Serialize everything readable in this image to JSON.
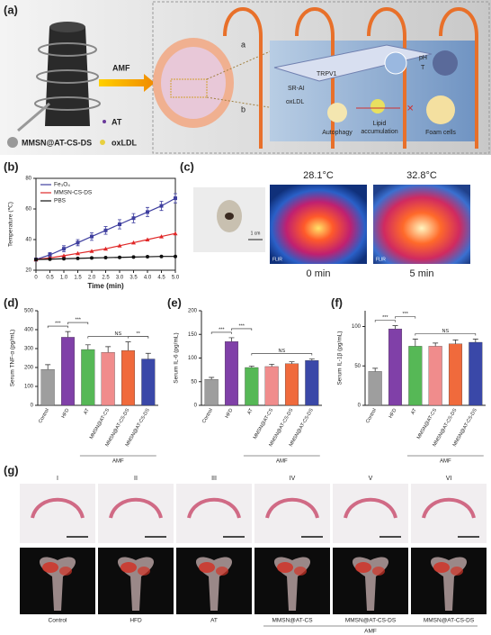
{
  "panel_labels": [
    "(a)",
    "(b)",
    "(c)",
    "(d)",
    "(e)",
    "(f)",
    "(g)"
  ],
  "panel_a": {
    "amf": "AMF",
    "nanoparticle": "MMSN@AT-CS-DS",
    "legend_at": "AT",
    "legend_oxldl": "oxLDL",
    "route_a": "a",
    "route_b": "b",
    "sr_ai": "SR-AI",
    "trpv1": "TRPV1",
    "oxldl": "oxLDL",
    "ph": "pH",
    "t": "T",
    "autophagy": "Autophagy",
    "lipid_lines": [
      "Lipid",
      "accumulation"
    ],
    "foam": "Foam cells"
  },
  "panel_c": {
    "temp_0": "28.1°C",
    "temp_5": "32.8°C",
    "time_0": "0 min",
    "time_5": "5 min",
    "scale": "1 cm",
    "brand": "FLIR"
  },
  "panel_g": {
    "sections": [
      "I",
      "II",
      "III",
      "IV",
      "V",
      "VI"
    ],
    "groups": [
      "Control",
      "HFD",
      "AT",
      "MMSN@AT-CS",
      "MMSN@AT-CS-DS",
      "MMSN@AT-CS-DS"
    ],
    "amf": "AMF"
  },
  "chart_data": [
    {
      "type": "line",
      "x_label": "Time (min)",
      "y_label": "Temperature (℃)",
      "x": [
        0,
        0.5,
        1,
        1.5,
        2,
        2.5,
        3,
        3.5,
        4,
        4.5,
        5
      ],
      "series": [
        {
          "name": "Fe₃O₄",
          "color": "#3f3f9f",
          "values": [
            27,
            30,
            34,
            38,
            42,
            46,
            50,
            54,
            58,
            62,
            67
          ],
          "errors": [
            1,
            1.5,
            2,
            2,
            2.5,
            2.5,
            3,
            3,
            3,
            3,
            3
          ]
        },
        {
          "name": "MMSN-CS-DS",
          "color": "#e02828",
          "values": [
            27,
            28,
            29.5,
            31,
            32.5,
            34,
            36,
            38,
            40,
            42,
            44
          ]
        },
        {
          "name": "PBS",
          "color": "#111111",
          "values": [
            27,
            27.2,
            27.5,
            27.7,
            28,
            28.2,
            28.4,
            28.6,
            28.8,
            29,
            29
          ]
        }
      ],
      "xlim": [
        0,
        5
      ],
      "xticks": [
        0,
        0.5,
        {
          "value": 1,
          "label": "1.0"
        },
        1.5,
        {
          "value": 2,
          "label": "2.0"
        },
        2.5,
        {
          "value": 3,
          "label": "3.0"
        },
        3.5,
        {
          "value": 4,
          "label": "4.0"
        },
        4.5,
        {
          "value": 5,
          "label": "5.0"
        }
      ],
      "ylim": [
        20,
        80
      ],
      "yticks": [
        20,
        40,
        60,
        80
      ],
      "legend": "upper-left"
    },
    {
      "type": "bar",
      "y_label": "Serum TNF-α (pg/mL)",
      "categories": [
        "Control",
        "HFD",
        "AT",
        "MMSN@AT-CS",
        "MMSN@AT-CS-DS",
        "MMSN@AT-CS-DS"
      ],
      "values": [
        190,
        360,
        295,
        280,
        290,
        245
      ],
      "errors": [
        25,
        30,
        25,
        30,
        45,
        30
      ],
      "colors": [
        "#9e9e9e",
        "#8040a8",
        "#56b856",
        "#f08c8c",
        "#f06a3c",
        "#3a48a8"
      ],
      "ylim": [
        0,
        500
      ],
      "yticks": [
        0,
        100,
        200,
        300,
        400,
        500
      ],
      "annotations": [
        "***",
        "***",
        "NS",
        "**"
      ],
      "group_label": "AMF"
    },
    {
      "type": "bar",
      "y_label": "Serum IL-6 (pg/mL)",
      "categories": [
        "Control",
        "HFD",
        "AT",
        "MMSN@AT-CS",
        "MMSN@AT-CS-DS",
        "MMSN@AT-CS-DS"
      ],
      "values": [
        55,
        135,
        80,
        82,
        88,
        95
      ],
      "errors": [
        4,
        8,
        3,
        5,
        4,
        3
      ],
      "colors": [
        "#9e9e9e",
        "#8040a8",
        "#56b856",
        "#f08c8c",
        "#f06a3c",
        "#3a48a8"
      ],
      "ylim": [
        0,
        200
      ],
      "yticks": [
        0,
        50,
        100,
        150,
        200
      ],
      "annotations": [
        "***",
        "***",
        "NS"
      ],
      "group_label": "AMF"
    },
    {
      "type": "bar",
      "y_label": "Serum IL-1β (pg/mL)",
      "categories": [
        "Control",
        "HFD",
        "AT",
        "MMSN@AT-CS",
        "MMSN@AT-CS-DS",
        "MMSN@AT-CS-DS"
      ],
      "values": [
        43,
        97,
        75,
        75,
        78,
        80
      ],
      "errors": [
        4,
        4,
        9,
        4,
        5,
        4
      ],
      "colors": [
        "#9e9e9e",
        "#8040a8",
        "#56b856",
        "#f08c8c",
        "#f06a3c",
        "#3a48a8"
      ],
      "ylim": [
        0,
        120
      ],
      "yticks": [
        0,
        50,
        100
      ],
      "annotations": [
        "***",
        "***",
        "NS"
      ],
      "group_label": "AMF"
    }
  ]
}
